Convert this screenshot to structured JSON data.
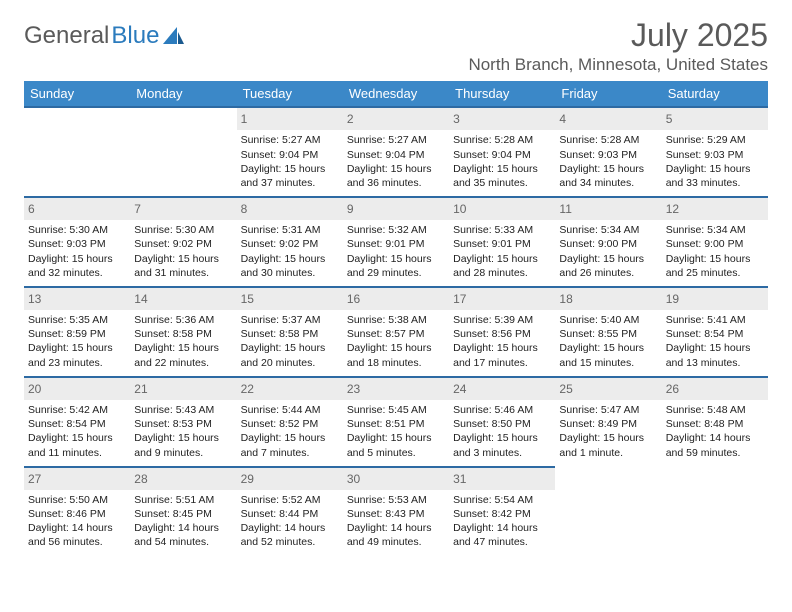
{
  "logo": {
    "text1": "General",
    "text2": "Blue"
  },
  "title": "July 2025",
  "location": "North Branch, Minnesota, United States",
  "colors": {
    "header_bg": "#3b88c8",
    "header_text": "#ffffff",
    "row_divider": "#2d6aa3",
    "daynum_bg": "#ececec",
    "daynum_text": "#666666",
    "body_text": "#222222",
    "title_text": "#5a5a5a",
    "logo_blue": "#2b7bbd",
    "page_bg": "#ffffff"
  },
  "typography": {
    "month_title_pt": 32,
    "location_pt": 17,
    "weekday_pt": 13,
    "daynum_pt": 12,
    "cell_pt": 10.5,
    "logo_pt": 24
  },
  "weekdays": [
    "Sunday",
    "Monday",
    "Tuesday",
    "Wednesday",
    "Thursday",
    "Friday",
    "Saturday"
  ],
  "weeks": [
    [
      null,
      null,
      {
        "n": "1",
        "sunrise": "5:27 AM",
        "sunset": "9:04 PM",
        "daylight": "15 hours and 37 minutes."
      },
      {
        "n": "2",
        "sunrise": "5:27 AM",
        "sunset": "9:04 PM",
        "daylight": "15 hours and 36 minutes."
      },
      {
        "n": "3",
        "sunrise": "5:28 AM",
        "sunset": "9:04 PM",
        "daylight": "15 hours and 35 minutes."
      },
      {
        "n": "4",
        "sunrise": "5:28 AM",
        "sunset": "9:03 PM",
        "daylight": "15 hours and 34 minutes."
      },
      {
        "n": "5",
        "sunrise": "5:29 AM",
        "sunset": "9:03 PM",
        "daylight": "15 hours and 33 minutes."
      }
    ],
    [
      {
        "n": "6",
        "sunrise": "5:30 AM",
        "sunset": "9:03 PM",
        "daylight": "15 hours and 32 minutes."
      },
      {
        "n": "7",
        "sunrise": "5:30 AM",
        "sunset": "9:02 PM",
        "daylight": "15 hours and 31 minutes."
      },
      {
        "n": "8",
        "sunrise": "5:31 AM",
        "sunset": "9:02 PM",
        "daylight": "15 hours and 30 minutes."
      },
      {
        "n": "9",
        "sunrise": "5:32 AM",
        "sunset": "9:01 PM",
        "daylight": "15 hours and 29 minutes."
      },
      {
        "n": "10",
        "sunrise": "5:33 AM",
        "sunset": "9:01 PM",
        "daylight": "15 hours and 28 minutes."
      },
      {
        "n": "11",
        "sunrise": "5:34 AM",
        "sunset": "9:00 PM",
        "daylight": "15 hours and 26 minutes."
      },
      {
        "n": "12",
        "sunrise": "5:34 AM",
        "sunset": "9:00 PM",
        "daylight": "15 hours and 25 minutes."
      }
    ],
    [
      {
        "n": "13",
        "sunrise": "5:35 AM",
        "sunset": "8:59 PM",
        "daylight": "15 hours and 23 minutes."
      },
      {
        "n": "14",
        "sunrise": "5:36 AM",
        "sunset": "8:58 PM",
        "daylight": "15 hours and 22 minutes."
      },
      {
        "n": "15",
        "sunrise": "5:37 AM",
        "sunset": "8:58 PM",
        "daylight": "15 hours and 20 minutes."
      },
      {
        "n": "16",
        "sunrise": "5:38 AM",
        "sunset": "8:57 PM",
        "daylight": "15 hours and 18 minutes."
      },
      {
        "n": "17",
        "sunrise": "5:39 AM",
        "sunset": "8:56 PM",
        "daylight": "15 hours and 17 minutes."
      },
      {
        "n": "18",
        "sunrise": "5:40 AM",
        "sunset": "8:55 PM",
        "daylight": "15 hours and 15 minutes."
      },
      {
        "n": "19",
        "sunrise": "5:41 AM",
        "sunset": "8:54 PM",
        "daylight": "15 hours and 13 minutes."
      }
    ],
    [
      {
        "n": "20",
        "sunrise": "5:42 AM",
        "sunset": "8:54 PM",
        "daylight": "15 hours and 11 minutes."
      },
      {
        "n": "21",
        "sunrise": "5:43 AM",
        "sunset": "8:53 PM",
        "daylight": "15 hours and 9 minutes."
      },
      {
        "n": "22",
        "sunrise": "5:44 AM",
        "sunset": "8:52 PM",
        "daylight": "15 hours and 7 minutes."
      },
      {
        "n": "23",
        "sunrise": "5:45 AM",
        "sunset": "8:51 PM",
        "daylight": "15 hours and 5 minutes."
      },
      {
        "n": "24",
        "sunrise": "5:46 AM",
        "sunset": "8:50 PM",
        "daylight": "15 hours and 3 minutes."
      },
      {
        "n": "25",
        "sunrise": "5:47 AM",
        "sunset": "8:49 PM",
        "daylight": "15 hours and 1 minute."
      },
      {
        "n": "26",
        "sunrise": "5:48 AM",
        "sunset": "8:48 PM",
        "daylight": "14 hours and 59 minutes."
      }
    ],
    [
      {
        "n": "27",
        "sunrise": "5:50 AM",
        "sunset": "8:46 PM",
        "daylight": "14 hours and 56 minutes."
      },
      {
        "n": "28",
        "sunrise": "5:51 AM",
        "sunset": "8:45 PM",
        "daylight": "14 hours and 54 minutes."
      },
      {
        "n": "29",
        "sunrise": "5:52 AM",
        "sunset": "8:44 PM",
        "daylight": "14 hours and 52 minutes."
      },
      {
        "n": "30",
        "sunrise": "5:53 AM",
        "sunset": "8:43 PM",
        "daylight": "14 hours and 49 minutes."
      },
      {
        "n": "31",
        "sunrise": "5:54 AM",
        "sunset": "8:42 PM",
        "daylight": "14 hours and 47 minutes."
      },
      null,
      null
    ]
  ],
  "labels": {
    "sunrise": "Sunrise:",
    "sunset": "Sunset:",
    "daylight": "Daylight:"
  }
}
